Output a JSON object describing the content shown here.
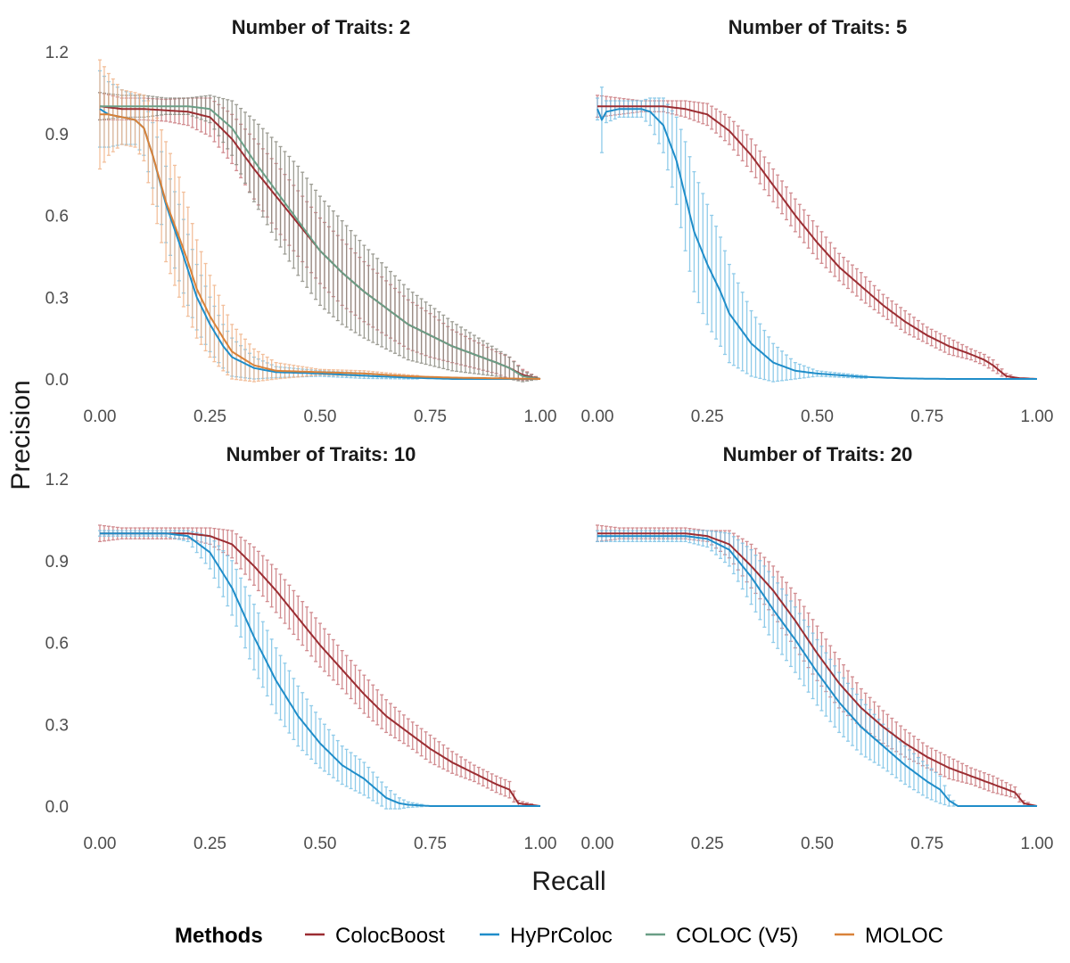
{
  "chart_data": {
    "type": "line",
    "xlabel": "Recall",
    "ylabel": "Precision",
    "xlim": [
      0,
      1
    ],
    "ylim": [
      -0.05,
      1.2
    ],
    "xticks": [
      "0.00",
      "0.25",
      "0.50",
      "0.75",
      "1.00"
    ],
    "yticks": [
      "0.0",
      "0.3",
      "0.6",
      "0.9",
      "1.2"
    ],
    "grid": false,
    "error_bars": true,
    "legend": {
      "title": "Methods",
      "position": "bottom",
      "entries": [
        {
          "name": "ColocBoost",
          "color": "#9B2D32"
        },
        {
          "name": "HyPrColoc",
          "color": "#1F8DC9"
        },
        {
          "name": "COLOC (V5)",
          "color": "#6A9E86"
        },
        {
          "name": "MOLOC",
          "color": "#D98239"
        }
      ]
    },
    "panels": [
      {
        "title": "Number of Traits: 2",
        "series": [
          {
            "name": "ColocBoost",
            "x": [
              0,
              0.05,
              0.1,
              0.15,
              0.2,
              0.25,
              0.3,
              0.35,
              0.4,
              0.45,
              0.5,
              0.55,
              0.6,
              0.65,
              0.7,
              0.75,
              0.8,
              0.85,
              0.9,
              0.93,
              0.96,
              1.0
            ],
            "y": [
              1.0,
              0.99,
              0.99,
              0.985,
              0.98,
              0.96,
              0.88,
              0.77,
              0.67,
              0.57,
              0.47,
              0.39,
              0.32,
              0.26,
              0.2,
              0.16,
              0.12,
              0.09,
              0.06,
              0.04,
              0.015,
              0.0
            ],
            "err": [
              0.05,
              0.04,
              0.04,
              0.04,
              0.05,
              0.07,
              0.09,
              0.11,
              0.12,
              0.12,
              0.12,
              0.12,
              0.11,
              0.1,
              0.09,
              0.08,
              0.06,
              0.05,
              0.04,
              0.04,
              0.02,
              0.0
            ]
          },
          {
            "name": "HyPrColoc",
            "x": [
              0,
              0.02,
              0.05,
              0.08,
              0.1,
              0.12,
              0.15,
              0.18,
              0.2,
              0.22,
              0.25,
              0.28,
              0.3,
              0.35,
              0.4,
              0.5,
              0.6,
              0.7,
              0.8,
              1.0
            ],
            "y": [
              0.99,
              0.97,
              0.96,
              0.95,
              0.92,
              0.82,
              0.64,
              0.5,
              0.4,
              0.3,
              0.2,
              0.12,
              0.08,
              0.04,
              0.025,
              0.02,
              0.012,
              0.005,
              0.0,
              0.0
            ],
            "err": [
              0.14,
              0.12,
              0.1,
              0.09,
              0.1,
              0.12,
              0.14,
              0.14,
              0.13,
              0.12,
              0.1,
              0.08,
              0.07,
              0.04,
              0.02,
              0.01,
              0.01,
              0.005,
              0.0,
              0.0
            ]
          },
          {
            "name": "COLOC (V5)",
            "x": [
              0,
              0.05,
              0.1,
              0.15,
              0.2,
              0.25,
              0.3,
              0.35,
              0.4,
              0.45,
              0.5,
              0.55,
              0.6,
              0.65,
              0.7,
              0.75,
              0.8,
              0.85,
              0.9,
              0.93,
              0.96,
              1.0
            ],
            "y": [
              1.0,
              1.0,
              1.0,
              1.0,
              1.0,
              0.99,
              0.92,
              0.8,
              0.69,
              0.58,
              0.47,
              0.39,
              0.32,
              0.26,
              0.2,
              0.16,
              0.12,
              0.09,
              0.06,
              0.04,
              0.01,
              0.0
            ],
            "err": [
              0.05,
              0.04,
              0.04,
              0.03,
              0.03,
              0.05,
              0.1,
              0.15,
              0.18,
              0.2,
              0.2,
              0.19,
              0.17,
              0.15,
              0.13,
              0.11,
              0.09,
              0.07,
              0.05,
              0.04,
              0.02,
              0.0
            ]
          },
          {
            "name": "MOLOC",
            "x": [
              0,
              0.02,
              0.05,
              0.08,
              0.1,
              0.12,
              0.15,
              0.18,
              0.2,
              0.22,
              0.25,
              0.28,
              0.3,
              0.35,
              0.4,
              0.5,
              0.6,
              0.7,
              0.8,
              1.0
            ],
            "y": [
              0.97,
              0.97,
              0.96,
              0.95,
              0.92,
              0.82,
              0.65,
              0.52,
              0.43,
              0.33,
              0.23,
              0.15,
              0.1,
              0.05,
              0.03,
              0.025,
              0.02,
              0.01,
              0.005,
              0.0
            ],
            "err": [
              0.2,
              0.15,
              0.1,
              0.1,
              0.12,
              0.18,
              0.22,
              0.22,
              0.2,
              0.18,
              0.15,
              0.12,
              0.1,
              0.06,
              0.03,
              0.01,
              0.01,
              0.005,
              0.0,
              0.0
            ]
          }
        ]
      },
      {
        "title": "Number of Traits: 5",
        "series": [
          {
            "name": "ColocBoost",
            "x": [
              0,
              0.05,
              0.1,
              0.15,
              0.2,
              0.25,
              0.3,
              0.35,
              0.4,
              0.45,
              0.5,
              0.55,
              0.6,
              0.65,
              0.7,
              0.75,
              0.8,
              0.85,
              0.88,
              0.9,
              0.93,
              0.96,
              1.0
            ],
            "y": [
              1.0,
              1.0,
              1.0,
              1.0,
              0.99,
              0.97,
              0.91,
              0.82,
              0.71,
              0.6,
              0.5,
              0.41,
              0.34,
              0.27,
              0.21,
              0.16,
              0.12,
              0.09,
              0.07,
              0.05,
              0.01,
              0.003,
              0.0
            ],
            "err": [
              0.04,
              0.03,
              0.02,
              0.02,
              0.03,
              0.04,
              0.05,
              0.06,
              0.06,
              0.06,
              0.06,
              0.05,
              0.05,
              0.04,
              0.04,
              0.03,
              0.03,
              0.02,
              0.02,
              0.02,
              0.01,
              0.0,
              0.0
            ]
          },
          {
            "name": "HyPrColoc",
            "x": [
              0,
              0.01,
              0.02,
              0.05,
              0.1,
              0.12,
              0.15,
              0.18,
              0.2,
              0.22,
              0.25,
              0.28,
              0.3,
              0.35,
              0.4,
              0.45,
              0.5,
              0.6,
              0.7,
              0.8,
              1.0
            ],
            "y": [
              0.99,
              0.95,
              0.98,
              0.99,
              0.99,
              0.98,
              0.93,
              0.8,
              0.67,
              0.54,
              0.42,
              0.32,
              0.24,
              0.13,
              0.06,
              0.03,
              0.02,
              0.008,
              0.002,
              0.0,
              0.0
            ],
            "err": [
              0.04,
              0.12,
              0.04,
              0.03,
              0.03,
              0.05,
              0.1,
              0.16,
              0.2,
              0.22,
              0.22,
              0.2,
              0.18,
              0.12,
              0.07,
              0.03,
              0.01,
              0.005,
              0.0,
              0.0,
              0.0
            ]
          }
        ]
      },
      {
        "title": "Number of Traits: 10",
        "series": [
          {
            "name": "ColocBoost",
            "x": [
              0,
              0.05,
              0.1,
              0.15,
              0.2,
              0.25,
              0.3,
              0.35,
              0.4,
              0.45,
              0.5,
              0.55,
              0.6,
              0.65,
              0.7,
              0.75,
              0.8,
              0.85,
              0.9,
              0.93,
              0.95,
              1.0
            ],
            "y": [
              1.0,
              1.0,
              1.0,
              1.0,
              1.0,
              0.99,
              0.96,
              0.88,
              0.79,
              0.69,
              0.59,
              0.5,
              0.41,
              0.33,
              0.27,
              0.21,
              0.16,
              0.12,
              0.08,
              0.06,
              0.01,
              0.0
            ],
            "err": [
              0.03,
              0.02,
              0.02,
              0.02,
              0.02,
              0.03,
              0.05,
              0.07,
              0.08,
              0.08,
              0.08,
              0.07,
              0.07,
              0.06,
              0.05,
              0.05,
              0.04,
              0.03,
              0.03,
              0.03,
              0.01,
              0.0
            ]
          },
          {
            "name": "HyPrColoc",
            "x": [
              0,
              0.05,
              0.1,
              0.15,
              0.2,
              0.25,
              0.3,
              0.35,
              0.4,
              0.45,
              0.5,
              0.55,
              0.6,
              0.65,
              0.68,
              0.7,
              0.75,
              1.0
            ],
            "y": [
              1.0,
              1.0,
              1.0,
              1.0,
              0.99,
              0.93,
              0.8,
              0.62,
              0.46,
              0.33,
              0.23,
              0.15,
              0.1,
              0.03,
              0.01,
              0.005,
              0.0,
              0.0
            ],
            "err": [
              0.01,
              0.01,
              0.01,
              0.01,
              0.02,
              0.06,
              0.1,
              0.12,
              0.12,
              0.11,
              0.09,
              0.07,
              0.06,
              0.04,
              0.02,
              0.01,
              0.0,
              0.0
            ]
          }
        ]
      },
      {
        "title": "Number of Traits: 20",
        "series": [
          {
            "name": "ColocBoost",
            "x": [
              0,
              0.05,
              0.1,
              0.15,
              0.2,
              0.25,
              0.3,
              0.35,
              0.4,
              0.45,
              0.5,
              0.55,
              0.6,
              0.65,
              0.7,
              0.75,
              0.8,
              0.85,
              0.9,
              0.95,
              0.97,
              1.0
            ],
            "y": [
              1.0,
              1.0,
              1.0,
              1.0,
              1.0,
              0.99,
              0.96,
              0.88,
              0.79,
              0.68,
              0.56,
              0.45,
              0.36,
              0.29,
              0.23,
              0.18,
              0.14,
              0.11,
              0.08,
              0.05,
              0.01,
              0.0
            ],
            "err": [
              0.03,
              0.02,
              0.02,
              0.02,
              0.02,
              0.02,
              0.05,
              0.08,
              0.09,
              0.1,
              0.1,
              0.09,
              0.07,
              0.06,
              0.05,
              0.04,
              0.04,
              0.03,
              0.03,
              0.02,
              0.01,
              0.0
            ]
          },
          {
            "name": "HyPrColoc",
            "x": [
              0,
              0.05,
              0.1,
              0.15,
              0.2,
              0.25,
              0.3,
              0.35,
              0.4,
              0.45,
              0.5,
              0.55,
              0.6,
              0.65,
              0.7,
              0.75,
              0.78,
              0.8,
              0.82,
              1.0
            ],
            "y": [
              0.99,
              0.99,
              0.99,
              0.99,
              0.99,
              0.98,
              0.94,
              0.84,
              0.72,
              0.61,
              0.49,
              0.38,
              0.29,
              0.22,
              0.15,
              0.09,
              0.06,
              0.02,
              0.0,
              0.0
            ],
            "err": [
              0.02,
              0.02,
              0.02,
              0.02,
              0.02,
              0.03,
              0.06,
              0.1,
              0.12,
              0.12,
              0.12,
              0.11,
              0.1,
              0.08,
              0.07,
              0.06,
              0.05,
              0.02,
              0.0,
              0.0
            ]
          }
        ]
      }
    ]
  }
}
